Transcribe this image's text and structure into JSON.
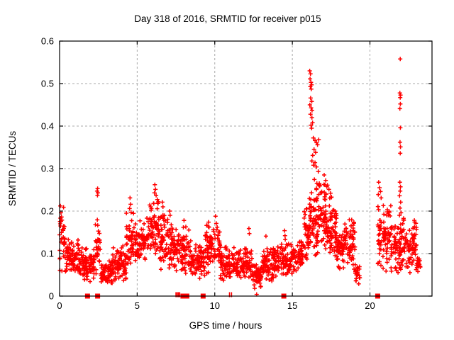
{
  "chart_data": {
    "type": "scatter",
    "title": "Day 318 of 2016, SRMTID for receiver p015",
    "xlabel": "GPS time / hours",
    "ylabel": "SRMTID / TECUs",
    "xlim": [
      0,
      24
    ],
    "ylim": [
      0,
      0.6
    ],
    "xticks": [
      0,
      5,
      10,
      15,
      20
    ],
    "xtick_labels": [
      "0",
      "5",
      "10",
      "15",
      "20"
    ],
    "yticks": [
      0,
      0.1,
      0.2,
      0.3,
      0.4,
      0.5,
      0.6
    ],
    "ytick_labels": [
      "0",
      "0.1",
      "0.2",
      "0.3",
      "0.4",
      "0.5",
      "0.6"
    ],
    "grid": {
      "show": true,
      "style": "dashed",
      "color": "#a8a8a8"
    },
    "legend": "none",
    "marker": {
      "glyph": "+",
      "color": "#ff0000",
      "arm": 3,
      "stroke_width": 1.5
    },
    "axis_color": "#000000",
    "background": "#ffffff",
    "seed": 13180,
    "bands": [
      [
        0.0,
        0.35,
        0.055,
        0.215,
        32
      ],
      [
        0.35,
        1.3,
        0.045,
        0.14,
        90
      ],
      [
        1.3,
        2.3,
        0.03,
        0.115,
        90
      ],
      [
        2.3,
        2.65,
        0.05,
        0.185,
        30
      ],
      [
        2.65,
        3.4,
        0.02,
        0.09,
        70
      ],
      [
        3.4,
        4.3,
        0.03,
        0.125,
        85
      ],
      [
        4.3,
        5.0,
        0.05,
        0.2,
        65
      ],
      [
        5.0,
        5.6,
        0.07,
        0.185,
        55
      ],
      [
        5.6,
        6.45,
        0.09,
        0.235,
        80
      ],
      [
        6.45,
        7.05,
        0.06,
        0.205,
        55
      ],
      [
        7.05,
        7.65,
        0.05,
        0.185,
        55
      ],
      [
        7.65,
        8.45,
        0.04,
        0.17,
        72
      ],
      [
        8.45,
        9.35,
        0.04,
        0.125,
        80
      ],
      [
        9.35,
        10.35,
        0.05,
        0.175,
        90
      ],
      [
        10.35,
        11.25,
        0.03,
        0.125,
        80
      ],
      [
        11.25,
        12.45,
        0.03,
        0.115,
        105
      ],
      [
        12.45,
        13.05,
        0.015,
        0.08,
        55
      ],
      [
        13.05,
        14.05,
        0.03,
        0.12,
        90
      ],
      [
        14.05,
        15.05,
        0.04,
        0.135,
        90
      ],
      [
        15.05,
        15.65,
        0.05,
        0.135,
        55
      ],
      [
        15.65,
        16.05,
        0.07,
        0.21,
        40
      ],
      [
        16.05,
        16.65,
        0.09,
        0.31,
        70
      ],
      [
        16.65,
        17.25,
        0.1,
        0.3,
        65
      ],
      [
        17.25,
        17.85,
        0.09,
        0.245,
        60
      ],
      [
        17.85,
        18.35,
        0.05,
        0.165,
        48
      ],
      [
        18.35,
        19.05,
        0.05,
        0.19,
        65
      ],
      [
        19.05,
        19.35,
        0.025,
        0.08,
        22
      ],
      [
        20.5,
        21.35,
        0.05,
        0.225,
        80
      ],
      [
        21.35,
        22.25,
        0.04,
        0.19,
        85
      ],
      [
        22.25,
        23.0,
        0.05,
        0.18,
        70
      ],
      [
        23.0,
        23.25,
        0.04,
        0.105,
        18
      ]
    ],
    "feature_points": [
      [
        16.12,
        0.53
      ],
      [
        16.17,
        0.523
      ],
      [
        16.14,
        0.511
      ],
      [
        16.2,
        0.503
      ],
      [
        16.24,
        0.497
      ],
      [
        16.16,
        0.493
      ],
      [
        16.22,
        0.487
      ],
      [
        16.18,
        0.466
      ],
      [
        16.25,
        0.458
      ],
      [
        16.13,
        0.45
      ],
      [
        16.21,
        0.443
      ],
      [
        16.27,
        0.437
      ],
      [
        16.17,
        0.428
      ],
      [
        16.26,
        0.42
      ],
      [
        16.3,
        0.408
      ],
      [
        16.2,
        0.402
      ],
      [
        16.24,
        0.395
      ],
      [
        16.35,
        0.372
      ],
      [
        16.46,
        0.366
      ],
      [
        16.56,
        0.361
      ],
      [
        16.62,
        0.356
      ],
      [
        16.7,
        0.368
      ],
      [
        16.4,
        0.345
      ],
      [
        16.5,
        0.338
      ],
      [
        16.31,
        0.331
      ],
      [
        16.26,
        0.318
      ],
      [
        16.36,
        0.308
      ],
      [
        16.46,
        0.314
      ],
      [
        16.55,
        0.304
      ],
      [
        17.05,
        0.285
      ],
      [
        17.15,
        0.272
      ],
      [
        17.26,
        0.261
      ],
      [
        17.36,
        0.251
      ],
      [
        17.46,
        0.242
      ],
      [
        17.52,
        0.233
      ],
      [
        21.95,
        0.558
      ],
      [
        21.93,
        0.478
      ],
      [
        21.97,
        0.473
      ],
      [
        21.95,
        0.467
      ],
      [
        21.96,
        0.452
      ],
      [
        21.93,
        0.441
      ],
      [
        21.96,
        0.396
      ],
      [
        21.94,
        0.362
      ],
      [
        21.97,
        0.351
      ],
      [
        21.95,
        0.336
      ],
      [
        21.93,
        0.268
      ],
      [
        21.97,
        0.257
      ],
      [
        21.95,
        0.247
      ],
      [
        21.91,
        0.236
      ],
      [
        21.98,
        0.221
      ],
      [
        21.94,
        0.207
      ],
      [
        22.0,
        0.196
      ],
      [
        21.9,
        0.19
      ],
      [
        20.56,
        0.268
      ],
      [
        20.62,
        0.255
      ],
      [
        20.68,
        0.246
      ],
      [
        20.54,
        0.239
      ],
      [
        20.72,
        0.231
      ],
      [
        2.42,
        0.247
      ],
      [
        2.45,
        0.253
      ],
      [
        2.47,
        0.243
      ],
      [
        2.44,
        0.237
      ],
      [
        0.05,
        0.212
      ],
      [
        0.09,
        0.196
      ],
      [
        0.13,
        0.186
      ],
      [
        0.04,
        0.17
      ],
      [
        4.54,
        0.231
      ],
      [
        4.58,
        0.216
      ],
      [
        4.51,
        0.206
      ],
      [
        4.61,
        0.197
      ],
      [
        6.14,
        0.262
      ],
      [
        6.18,
        0.251
      ],
      [
        6.11,
        0.243
      ],
      [
        6.22,
        0.237
      ],
      [
        6.3,
        0.227
      ],
      [
        6.35,
        0.218
      ],
      [
        6.62,
        0.221
      ],
      [
        6.66,
        0.21
      ],
      [
        7.1,
        0.2
      ],
      [
        7.12,
        0.19
      ],
      [
        8.02,
        0.178
      ],
      [
        9.6,
        0.174
      ],
      [
        9.63,
        0.162
      ],
      [
        10.05,
        0.188
      ],
      [
        10.1,
        0.171
      ],
      [
        12.2,
        0.159
      ],
      [
        12.23,
        0.147
      ],
      [
        13.3,
        0.141
      ],
      [
        14.5,
        0.154
      ],
      [
        14.53,
        0.142
      ],
      [
        15.9,
        0.205
      ],
      [
        12.7,
        0.004
      ]
    ],
    "zero_squares": [
      1.8,
      2.45,
      7.95,
      8.2,
      9.25,
      14.45,
      20.5
    ],
    "zero_bars": [
      7.5,
      7.58,
      7.66,
      7.74,
      10.95,
      11.08
    ]
  }
}
